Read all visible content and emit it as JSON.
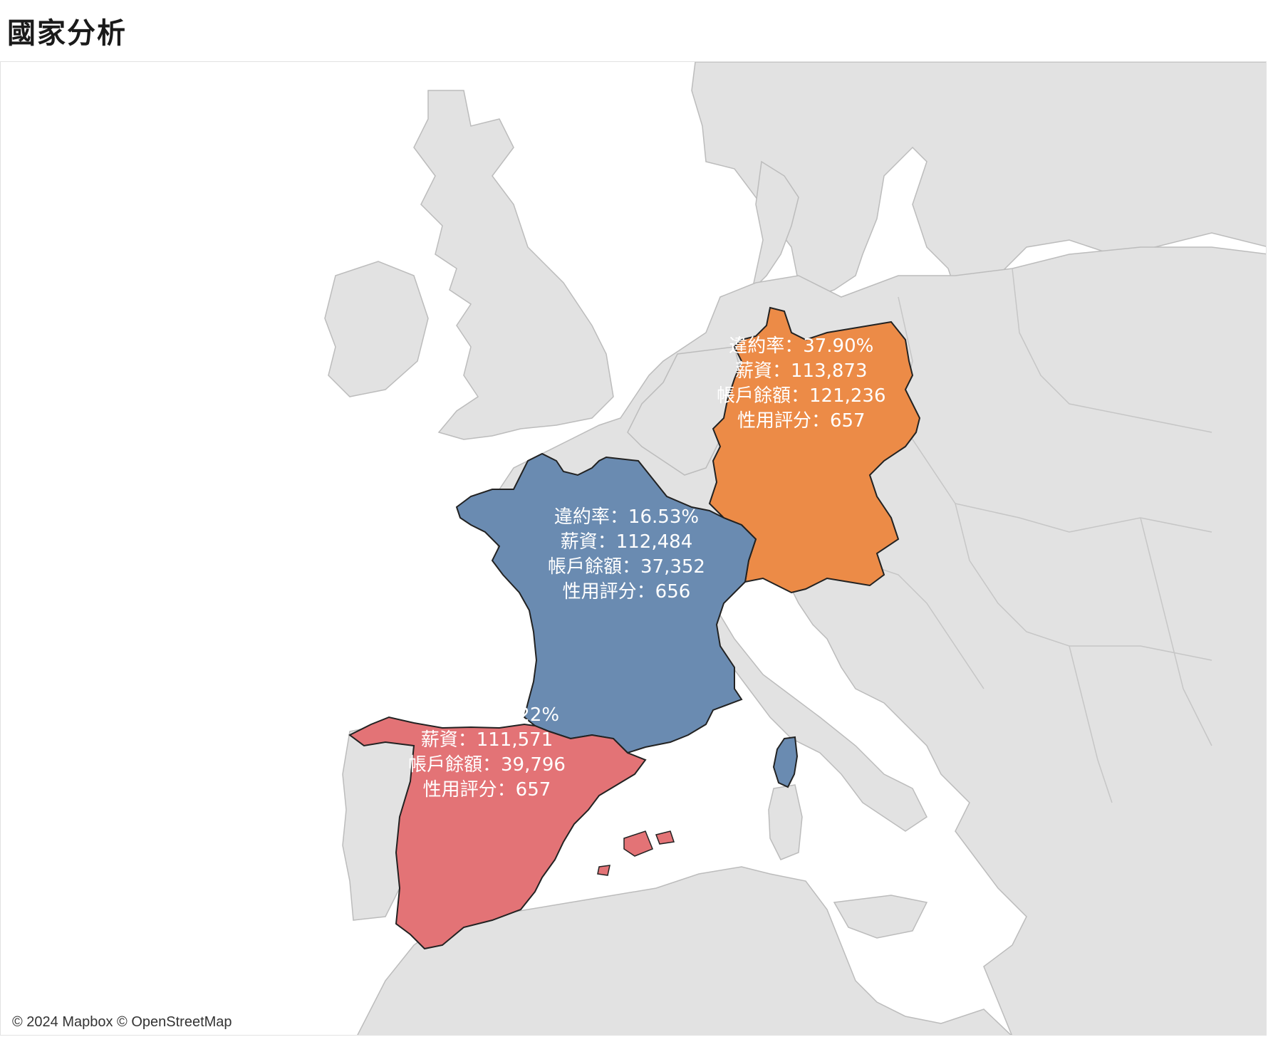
{
  "header": {
    "title": "國家分析"
  },
  "attribution": "© 2024 Mapbox © OpenStreetMap",
  "colors": {
    "france": "#6a8bb1",
    "germany": "#ec8b47",
    "spain": "#e37376",
    "land": "#e2e2e2",
    "water": "#ffffff",
    "border": "#b9b9b9"
  },
  "regions": [
    {
      "id": "france",
      "lines": [
        "違約率：16.53%",
        "薪資：112,484",
        "帳戶餘額：37,352",
        "性用評分：656"
      ]
    },
    {
      "id": "germany",
      "lines": [
        "違約率：37.90%",
        "薪資：113,873",
        "帳戶餘額：121,236",
        "性用評分：657"
      ]
    },
    {
      "id": "spain",
      "lines": [
        "違約率：17.22%",
        "薪資：111,571",
        "帳戶餘額：39,796",
        "性用評分：657"
      ]
    }
  ]
}
